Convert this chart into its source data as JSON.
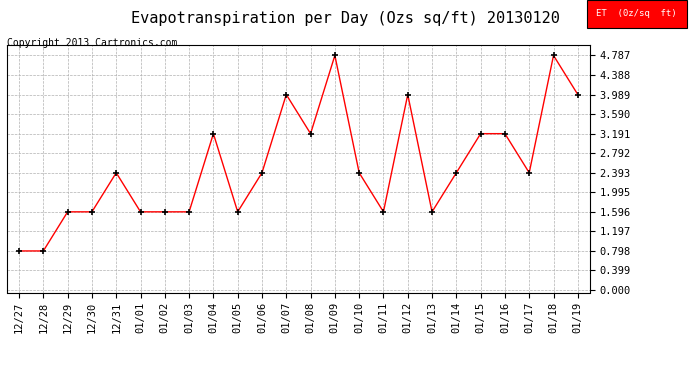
{
  "title": "Evapotranspiration per Day (Ozs sq/ft) 20130120",
  "copyright": "Copyright 2013 Cartronics.com",
  "legend_label": "ET  (0z/sq  ft)",
  "x_labels": [
    "12/27",
    "12/28",
    "12/29",
    "12/30",
    "12/31",
    "01/01",
    "01/02",
    "01/03",
    "01/04",
    "01/05",
    "01/06",
    "01/07",
    "01/08",
    "01/09",
    "01/10",
    "01/11",
    "01/12",
    "01/13",
    "01/14",
    "01/15",
    "01/16",
    "01/17",
    "01/18",
    "01/19"
  ],
  "y_values": [
    0.798,
    0.798,
    1.596,
    1.596,
    2.393,
    1.596,
    1.596,
    1.596,
    3.191,
    1.596,
    2.393,
    3.989,
    3.191,
    4.787,
    2.393,
    1.596,
    3.989,
    1.596,
    2.393,
    3.191,
    3.191,
    2.393,
    4.787,
    3.989
  ],
  "yticks": [
    0.0,
    0.399,
    0.798,
    1.197,
    1.596,
    1.995,
    2.393,
    2.792,
    3.191,
    3.59,
    3.989,
    4.388,
    4.787
  ],
  "ylim": [
    -0.05,
    5.0
  ],
  "line_color": "red",
  "marker_color": "black",
  "bg_color": "white",
  "grid_color": "#b0b0b0",
  "title_fontsize": 11,
  "copyright_fontsize": 7,
  "tick_fontsize": 7.5,
  "legend_bg": "red",
  "legend_text_color": "white"
}
